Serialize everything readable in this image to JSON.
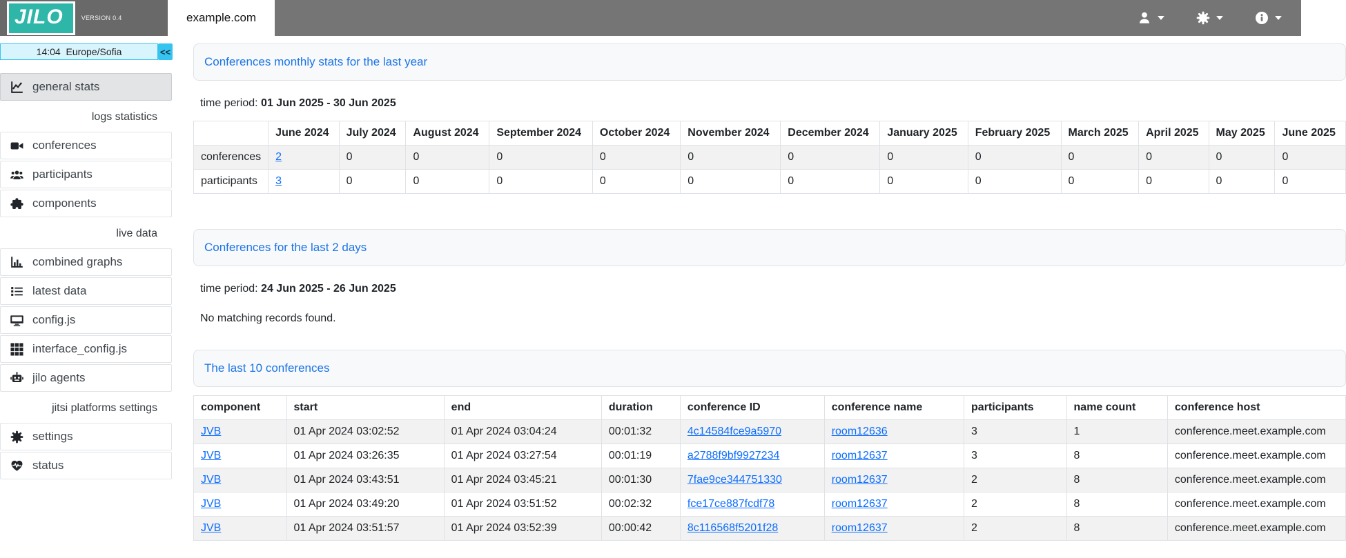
{
  "header": {
    "logo_text": "JILO",
    "version": "VERSION 0.4",
    "platform_tab": "example.com",
    "menus": [
      {
        "name": "user-menu",
        "icon": "user-icon"
      },
      {
        "name": "settings-menu",
        "icon": "gear-icon"
      },
      {
        "name": "info-menu",
        "icon": "info-icon"
      }
    ]
  },
  "sidebar": {
    "clock": {
      "time": "14:04",
      "timezone": "Europe/Sofia"
    },
    "collapse_button": "<<",
    "sections": [
      {
        "header": "",
        "items": [
          {
            "icon": "chart-line-icon",
            "label": "general stats",
            "active": true
          }
        ]
      },
      {
        "header": "logs statistics",
        "items": [
          {
            "icon": "video-camera-icon",
            "label": "conferences"
          },
          {
            "icon": "users-icon",
            "label": "participants"
          },
          {
            "icon": "puzzle-icon",
            "label": "components"
          }
        ]
      },
      {
        "header": "live data",
        "items": [
          {
            "icon": "bar-chart-icon",
            "label": "combined graphs"
          },
          {
            "icon": "list-icon",
            "label": "latest data"
          },
          {
            "icon": "desktop-icon",
            "label": "config.js"
          },
          {
            "icon": "grid-icon",
            "label": "interface_config.js"
          },
          {
            "icon": "robot-icon",
            "label": "jilo agents"
          }
        ]
      },
      {
        "header": "jitsi platforms settings",
        "items": [
          {
            "icon": "gear-icon",
            "label": "settings"
          },
          {
            "icon": "heart-pulse-icon",
            "label": "status"
          }
        ]
      }
    ]
  },
  "main": {
    "monthly_stats": {
      "title": "Conferences monthly stats for the last year",
      "time_period_label": "time period:",
      "time_period_value": "01 Jun 2025 - 30 Jun 2025",
      "columns": [
        "",
        "June 2024",
        "July 2024",
        "August 2024",
        "September 2024",
        "October 2024",
        "November 2024",
        "December 2024",
        "January 2025",
        "February 2025",
        "March 2025",
        "April 2025",
        "May 2025",
        "June 2025"
      ],
      "rows": [
        {
          "label": "conferences",
          "values": [
            "2",
            "0",
            "0",
            "0",
            "0",
            "0",
            "0",
            "0",
            "0",
            "0",
            "0",
            "0",
            "0"
          ],
          "link_indexes": [
            0
          ]
        },
        {
          "label": "participants",
          "values": [
            "3",
            "0",
            "0",
            "0",
            "0",
            "0",
            "0",
            "0",
            "0",
            "0",
            "0",
            "0",
            "0"
          ],
          "link_indexes": [
            0
          ]
        }
      ]
    },
    "last_two_days": {
      "title": "Conferences for the last 2 days",
      "time_period_label": "time period:",
      "time_period_value": "24 Jun 2025 - 26 Jun 2025",
      "empty_message": "No matching records found."
    },
    "last_conferences": {
      "title": "The last 10 conferences",
      "columns": [
        "component",
        "start",
        "end",
        "duration",
        "conference ID",
        "conference name",
        "participants",
        "name count",
        "conference host"
      ],
      "link_columns": [
        0,
        4,
        5
      ],
      "rows": [
        [
          "JVB",
          "01 Apr 2024 03:02:52",
          "01 Apr 2024 03:04:24",
          "00:01:32",
          "4c14584fce9a5970",
          "room12636",
          "3",
          "1",
          "conference.meet.example.com"
        ],
        [
          "JVB",
          "01 Apr 2024 03:26:35",
          "01 Apr 2024 03:27:54",
          "00:01:19",
          "a2788f9bf9927234",
          "room12637",
          "3",
          "8",
          "conference.meet.example.com"
        ],
        [
          "JVB",
          "01 Apr 2024 03:43:51",
          "01 Apr 2024 03:45:21",
          "00:01:30",
          "7fae9ce344751330",
          "room12637",
          "2",
          "8",
          "conference.meet.example.com"
        ],
        [
          "JVB",
          "01 Apr 2024 03:49:20",
          "01 Apr 2024 03:51:52",
          "00:02:32",
          "fce17ce887fcdf78",
          "room12637",
          "2",
          "8",
          "conference.meet.example.com"
        ],
        [
          "JVB",
          "01 Apr 2024 03:51:57",
          "01 Apr 2024 03:52:39",
          "00:00:42",
          "8c116568f5201f28",
          "room12637",
          "2",
          "8",
          "conference.meet.example.com"
        ]
      ]
    }
  },
  "colors": {
    "header_bg": "#757575",
    "logo_bg": "#2eb6a8",
    "accent_cyan": "#35c3f0",
    "clock_bg": "#d8f4fd",
    "link_blue": "#0d6efd",
    "title_blue": "#1b74e8"
  }
}
